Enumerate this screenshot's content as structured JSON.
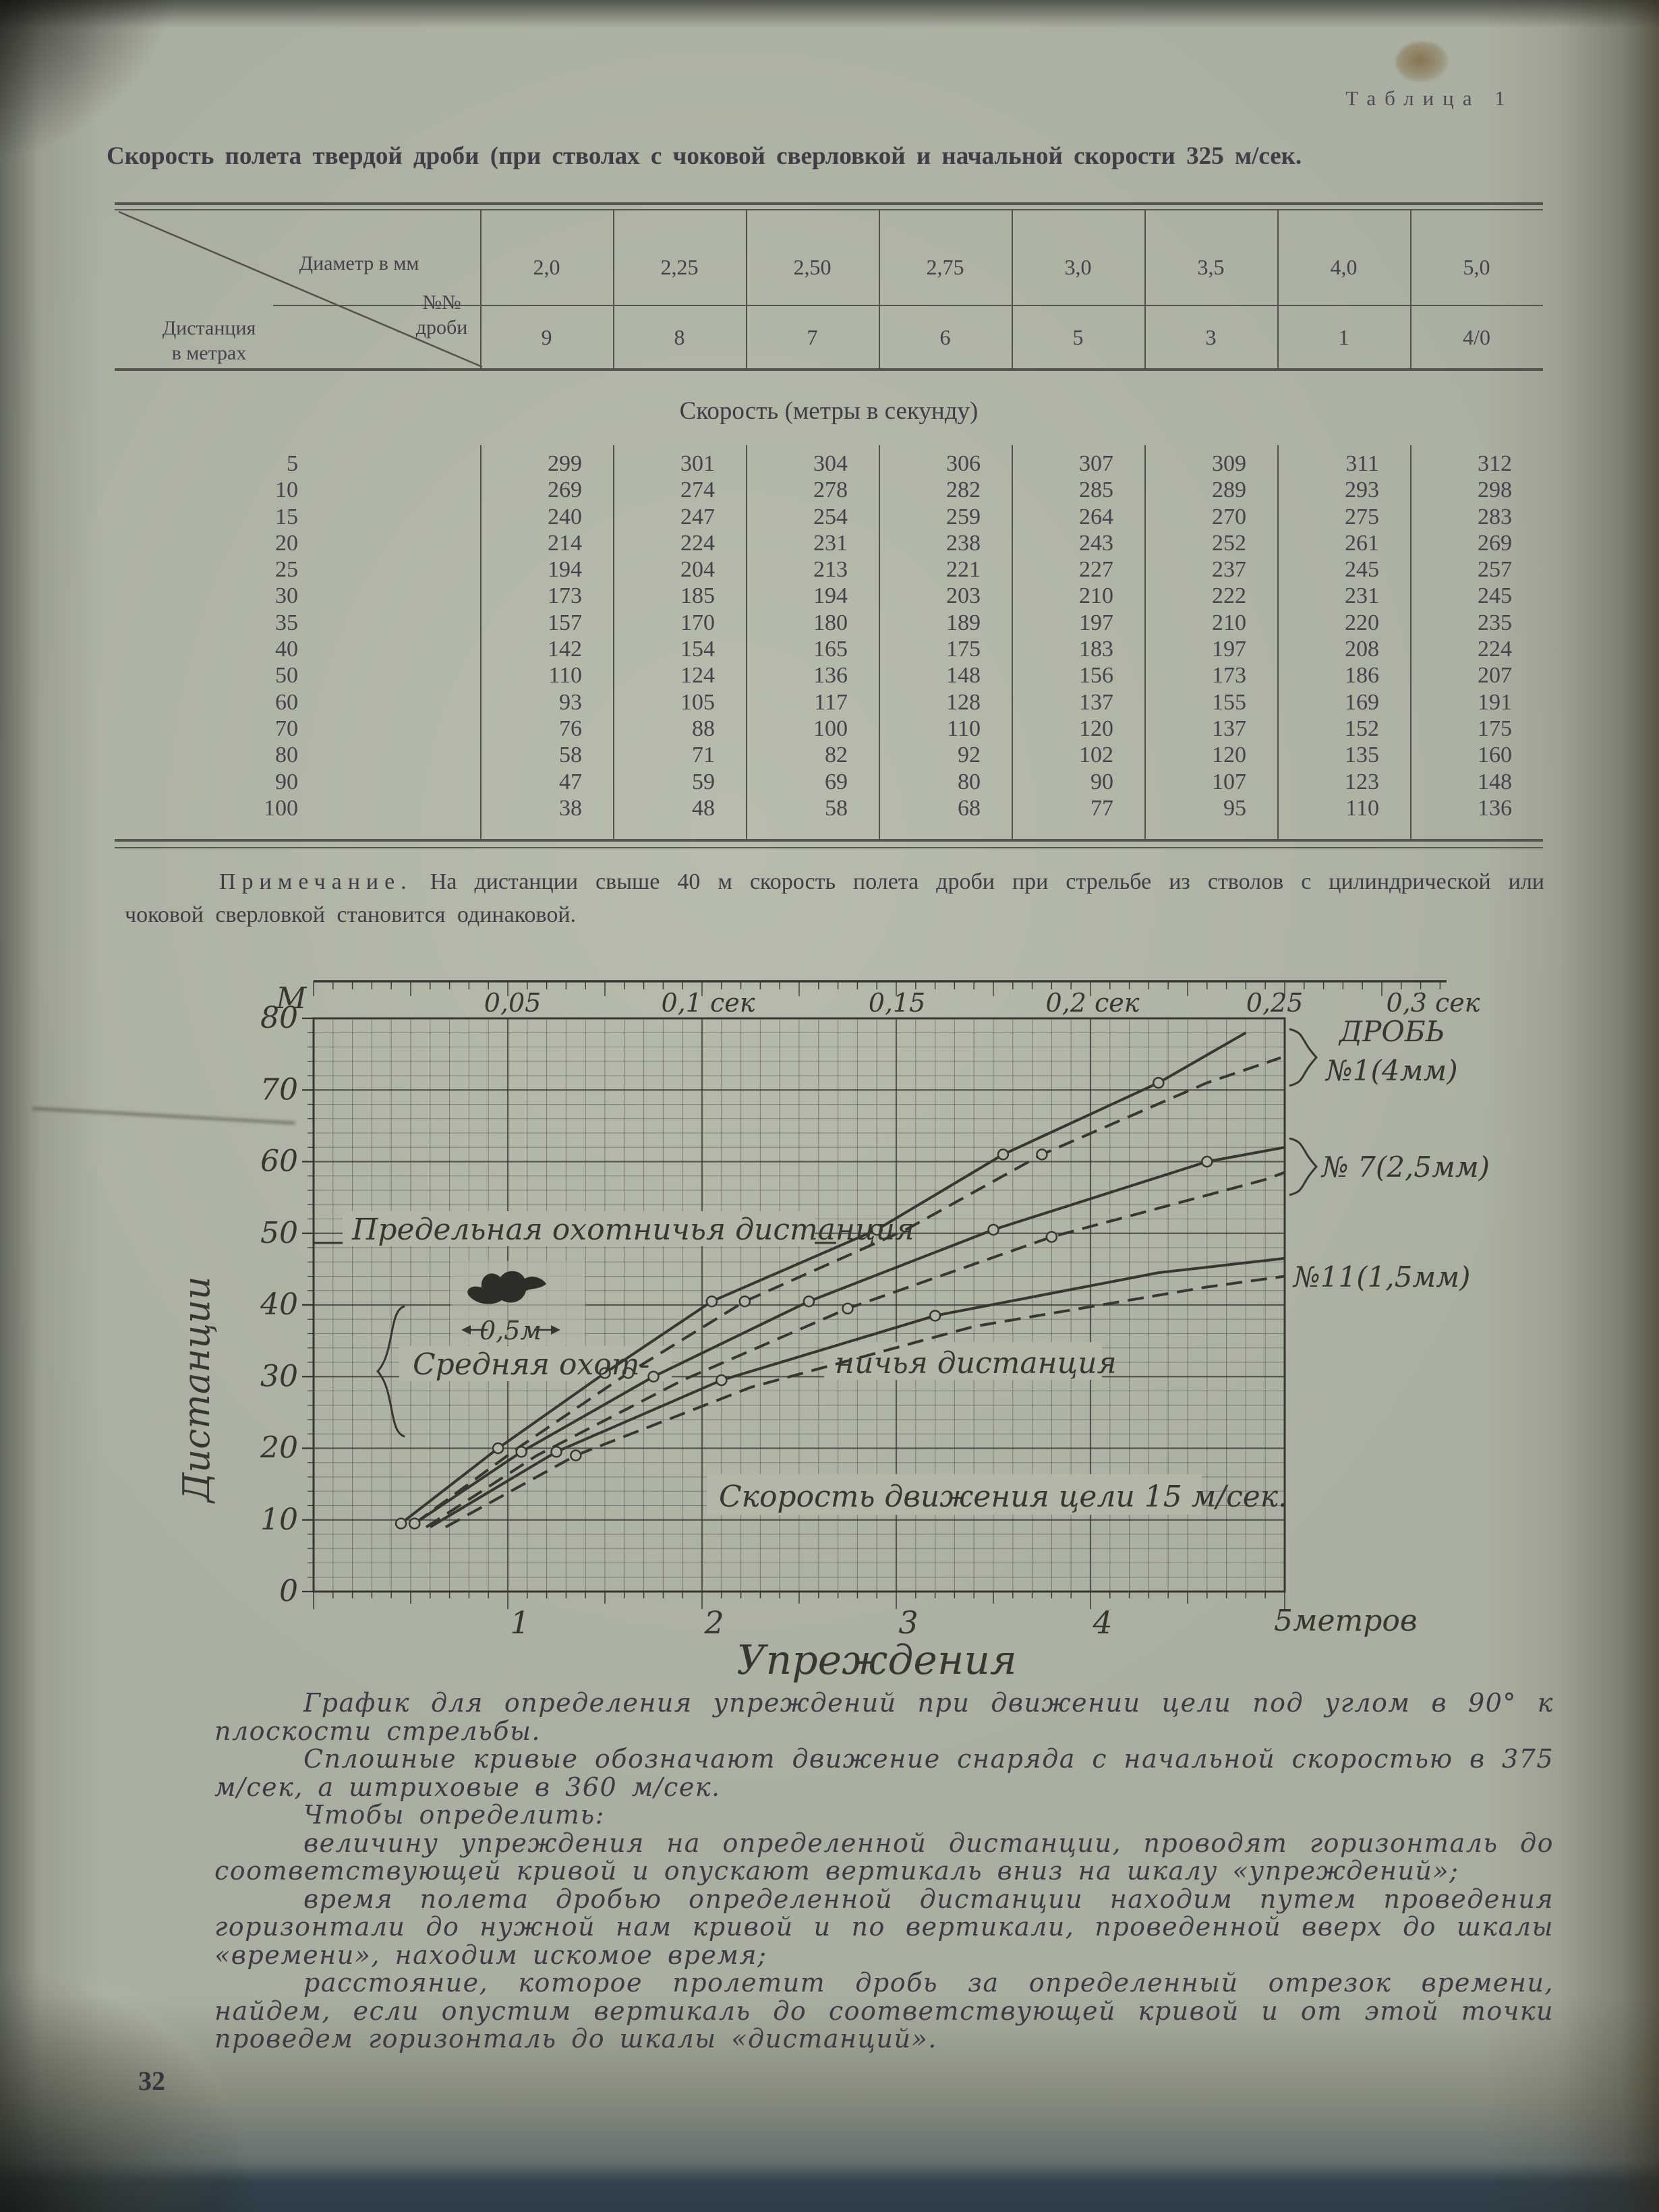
{
  "page": {
    "table_caption": "Таблица 1",
    "title": "Скорость полета твердой дроби (при стволах с чоковой сверловкой и начальной скорости 325 м/сек.",
    "page_number": "32"
  },
  "table": {
    "header": {
      "diameter_label": "Диаметр в мм",
      "shot_label_line1": "№№",
      "shot_label_line2": "дроби",
      "distance_label_line1": "Дистанция",
      "distance_label_line2": "в метрах",
      "diameters": [
        "2,0",
        "2,25",
        "2,50",
        "2,75",
        "3,0",
        "3,5",
        "4,0",
        "5,0"
      ],
      "shot_numbers": [
        "9",
        "8",
        "7",
        "6",
        "5",
        "3",
        "1",
        "4/0"
      ]
    },
    "subtitle": "Скорость (метры в секунду)",
    "rows": [
      {
        "distance": "5",
        "values": [
          "299",
          "301",
          "304",
          "306",
          "307",
          "309",
          "311",
          "312"
        ]
      },
      {
        "distance": "10",
        "values": [
          "269",
          "274",
          "278",
          "282",
          "285",
          "289",
          "293",
          "298"
        ]
      },
      {
        "distance": "15",
        "values": [
          "240",
          "247",
          "254",
          "259",
          "264",
          "270",
          "275",
          "283"
        ]
      },
      {
        "distance": "20",
        "values": [
          "214",
          "224",
          "231",
          "238",
          "243",
          "252",
          "261",
          "269"
        ]
      },
      {
        "distance": "25",
        "values": [
          "194",
          "204",
          "213",
          "221",
          "227",
          "237",
          "245",
          "257"
        ]
      },
      {
        "distance": "30",
        "values": [
          "173",
          "185",
          "194",
          "203",
          "210",
          "222",
          "231",
          "245"
        ]
      },
      {
        "distance": "35",
        "values": [
          "157",
          "170",
          "180",
          "189",
          "197",
          "210",
          "220",
          "235"
        ]
      },
      {
        "distance": "40",
        "values": [
          "142",
          "154",
          "165",
          "175",
          "183",
          "197",
          "208",
          "224"
        ]
      },
      {
        "distance": "50",
        "values": [
          "110",
          "124",
          "136",
          "148",
          "156",
          "173",
          "186",
          "207"
        ]
      },
      {
        "distance": "60",
        "values": [
          "93",
          "105",
          "117",
          "128",
          "137",
          "155",
          "169",
          "191"
        ]
      },
      {
        "distance": "70",
        "values": [
          "76",
          "88",
          "100",
          "110",
          "120",
          "137",
          "152",
          "175"
        ]
      },
      {
        "distance": "80",
        "values": [
          "58",
          "71",
          "82",
          "92",
          "102",
          "120",
          "135",
          "160"
        ]
      },
      {
        "distance": "90",
        "values": [
          "47",
          "59",
          "69",
          "80",
          "90",
          "107",
          "123",
          "148"
        ]
      },
      {
        "distance": "100",
        "values": [
          "38",
          "48",
          "58",
          "68",
          "77",
          "95",
          "110",
          "136"
        ]
      }
    ],
    "note_lead": "Примечание.",
    "note_text": "На дистанции свыше 40 м скорость полета дроби при стрельбе из стволов с цилиндрической или чоковой сверловкой становится одинаковой."
  },
  "chart_data": {
    "type": "line",
    "xlabel": "Упреждения",
    "ylabel": "Дистанции",
    "y_unit": "М",
    "xlim": [
      0,
      5
    ],
    "ylim": [
      0,
      80
    ],
    "grid": "on",
    "x_tick_labels": [
      "1",
      "2",
      "3",
      "4",
      "5метров"
    ],
    "y_tick_values": [
      0,
      10,
      20,
      30,
      40,
      50,
      60,
      70,
      80
    ],
    "top_axis_labels": [
      "0,05",
      "0,1 сек",
      "0,15",
      "0,2 сек",
      "0,25",
      "0,3 сек"
    ],
    "right_labels": [
      "ДРОБЬ",
      "№1(4мм)",
      "№ 7(2,5мм)",
      "№11(1,5мм)"
    ],
    "series": [
      {
        "name": "ДРОБЬ №1 (4мм), сплошная (375 м/сек)",
        "style": "solid",
        "points": [
          [
            0.45,
            9.5
          ],
          [
            0.95,
            20
          ],
          [
            1.5,
            30.5
          ],
          [
            2.05,
            40.5
          ],
          [
            2.9,
            50.5
          ],
          [
            3.55,
            61
          ],
          [
            4.35,
            71
          ],
          [
            4.8,
            78
          ]
        ],
        "markers": [
          0,
          1,
          2,
          3,
          4,
          5,
          6
        ]
      },
      {
        "name": "ДРОБЬ №1 (4мм), штриховая (360 м/сек)",
        "style": "dashed",
        "points": [
          [
            0.52,
            9.5
          ],
          [
            1.05,
            20
          ],
          [
            1.62,
            30.5
          ],
          [
            2.22,
            40.5
          ],
          [
            3.05,
            50.5
          ],
          [
            3.75,
            61
          ],
          [
            4.6,
            71
          ],
          [
            4.98,
            74.5
          ]
        ],
        "markers": [
          2,
          3,
          5
        ]
      },
      {
        "name": "№ 7 (2,5мм), сплошная (375 м/сек)",
        "style": "solid",
        "points": [
          [
            0.52,
            9.5
          ],
          [
            1.07,
            19.5
          ],
          [
            1.75,
            30
          ],
          [
            2.55,
            40.5
          ],
          [
            3.5,
            50.5
          ],
          [
            4.6,
            60
          ],
          [
            5,
            62
          ]
        ],
        "markers": [
          0,
          1,
          2,
          3,
          4,
          5
        ]
      },
      {
        "name": "№ 7 (2,5мм), штриховая (360 м/сек)",
        "style": "dashed",
        "points": [
          [
            0.58,
            9
          ],
          [
            1.15,
            19
          ],
          [
            1.9,
            29.5
          ],
          [
            2.75,
            39.5
          ],
          [
            3.8,
            49.5
          ],
          [
            4.9,
            57.5
          ],
          [
            5,
            58.5
          ]
        ],
        "markers": [
          3,
          4
        ]
      },
      {
        "name": "№ 11 (1,5мм), сплошная (375 м/сек)",
        "style": "solid",
        "points": [
          [
            0.6,
            9
          ],
          [
            1.25,
            19.5
          ],
          [
            2.1,
            29.5
          ],
          [
            3.2,
            38.5
          ],
          [
            4.35,
            44.5
          ],
          [
            5,
            46.5
          ]
        ],
        "markers": [
          1,
          2,
          3
        ]
      },
      {
        "name": "№ 11 (1,5мм), штриховая (360 м/сек)",
        "style": "dashed",
        "points": [
          [
            0.68,
            9
          ],
          [
            1.35,
            19
          ],
          [
            2.25,
            28.5
          ],
          [
            3.4,
            37
          ],
          [
            4.6,
            42.5
          ],
          [
            5,
            44
          ]
        ],
        "markers": [
          1
        ]
      }
    ],
    "annotations": {
      "limit_distance_label": "Предельная охотничья дистанция",
      "limit_distance_y": 50,
      "avg_distance_label_part1": "Средняя охот-",
      "avg_distance_label_part2": "ничья дистанция",
      "bird_span_label": "0,5м",
      "target_speed_label": "Скорость движения цели 15 м/сек."
    }
  },
  "body_paragraphs": [
    "График для определения упреждений при движении цели под углом в 90° к плоскости стрельбы.",
    "Сплошные кривые обозначают движение снаряда с начальной скоростью в 375 м/сек, а штриховые в 360 м/сек.",
    "Чтобы определить:",
    "величину упреждения на определенной дистанции, проводят горизонталь до соответствующей кривой и опускают вертикаль вниз на шкалу «упреждений»;",
    "время полета дробью определенной дистанции находим путем проведения горизонтали до нужной нам кривой и по вертикали, проведенной вверх до шкалы «времени», находим искомое время;",
    "расстояние, которое пролетит дробь за определенный отрезок времени, найдем, если опустим вертикаль до соответствующей кривой и от этой точки проведем горизонталь до шкалы «дистанций»."
  ]
}
